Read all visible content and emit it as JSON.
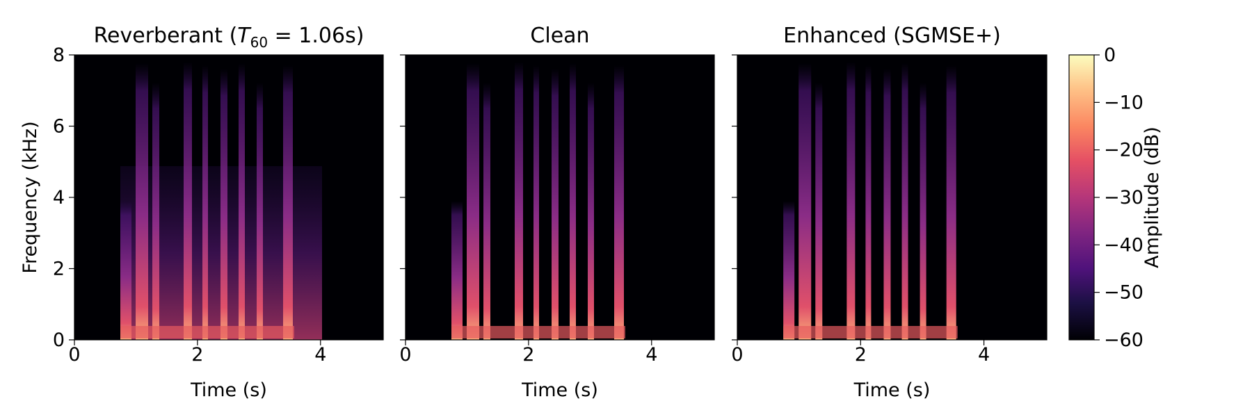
{
  "chart_data": [
    {
      "type": "spectrogram",
      "title": [
        "Reverberant (",
        "T",
        "60",
        " = 1.06s)"
      ],
      "xlabel": "Time (s)",
      "ylabel": "Frequency (kHz)",
      "xlim": [
        0,
        5.02
      ],
      "xticks": [
        0,
        2,
        4
      ],
      "ylim": [
        0,
        8
      ],
      "yticks": [
        0,
        2,
        4,
        6,
        8
      ],
      "ytick_labels": true,
      "reverb": true
    },
    {
      "type": "spectrogram",
      "title": "Clean",
      "xlabel": "Time (s)",
      "xlim": [
        0,
        5.02
      ],
      "xticks": [
        0,
        2,
        4
      ],
      "ylim": [
        0,
        8
      ],
      "yticks": [
        0,
        2,
        4,
        6,
        8
      ],
      "ytick_labels": false,
      "reverb": false
    },
    {
      "type": "spectrogram",
      "title": "Enhanced (SGMSE+)",
      "xlabel": "Time (s)",
      "xlim": [
        0,
        5.02
      ],
      "xticks": [
        0,
        2,
        4
      ],
      "ylim": [
        0,
        8
      ],
      "yticks": [
        0,
        2,
        4,
        6,
        8
      ],
      "ytick_labels": false,
      "reverb": false
    },
    {
      "type": "colorbar",
      "label": "Amplitude (dB)",
      "ylim": [
        -60,
        0
      ],
      "yticks": [
        0,
        {
          "value": -10,
          "label": "−10"
        },
        {
          "value": -20,
          "label": "−20"
        },
        {
          "value": -30,
          "label": "−30"
        },
        {
          "value": -40,
          "label": "−40"
        },
        {
          "value": -50,
          "label": "−50"
        },
        {
          "value": -60,
          "label": "−60"
        }
      ]
    }
  ]
}
